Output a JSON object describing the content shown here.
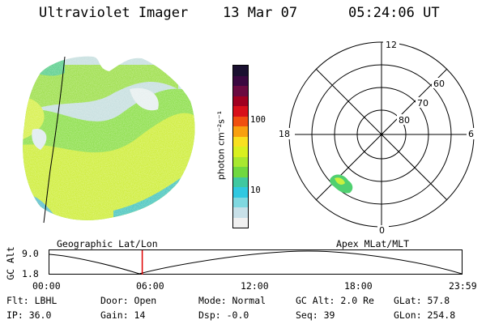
{
  "header": {
    "instrument": "Ultraviolet Imager",
    "date": "13 Mar 07",
    "time": "05:24:06 UT"
  },
  "colorbar": {
    "unit_label": "photon cm⁻²s⁻¹",
    "tick_labels": [
      "100",
      "10"
    ],
    "colors": [
      "#1a1030",
      "#3a0840",
      "#6a0a40",
      "#a00020",
      "#d8101a",
      "#f05010",
      "#f8a010",
      "#f8e020",
      "#d8f020",
      "#a8e830",
      "#70d840",
      "#40c8a0",
      "#30c8e0",
      "#80d8e0",
      "#c8e0e8",
      "#f0f0f0"
    ]
  },
  "polar_plot": {
    "mlt_labels": {
      "top": "12",
      "left": "18",
      "right": "6",
      "bottom": "0"
    },
    "lat_labels": [
      "60",
      "70",
      "80"
    ]
  },
  "timeline": {
    "axis_label": "GC Alt",
    "y_ticks": [
      "9.0",
      "1.8"
    ],
    "left_header": "Geographic Lat/Lon",
    "right_header": "Apex MLat/MLT",
    "x_ticks": [
      "00:00",
      "06:00",
      "12:00",
      "18:00",
      "23:59"
    ],
    "marker_time": "05:24"
  },
  "footer": {
    "row1": [
      "Flt: LBHL",
      "Door: Open",
      "Mode: Normal",
      "GC Alt: 2.0 Re",
      "GLat:  57.8"
    ],
    "row2": [
      "IP: 36.0",
      "Gain: 14",
      "Dsp:   -0.0",
      "Seq: 39",
      "GLon: 254.8"
    ]
  }
}
